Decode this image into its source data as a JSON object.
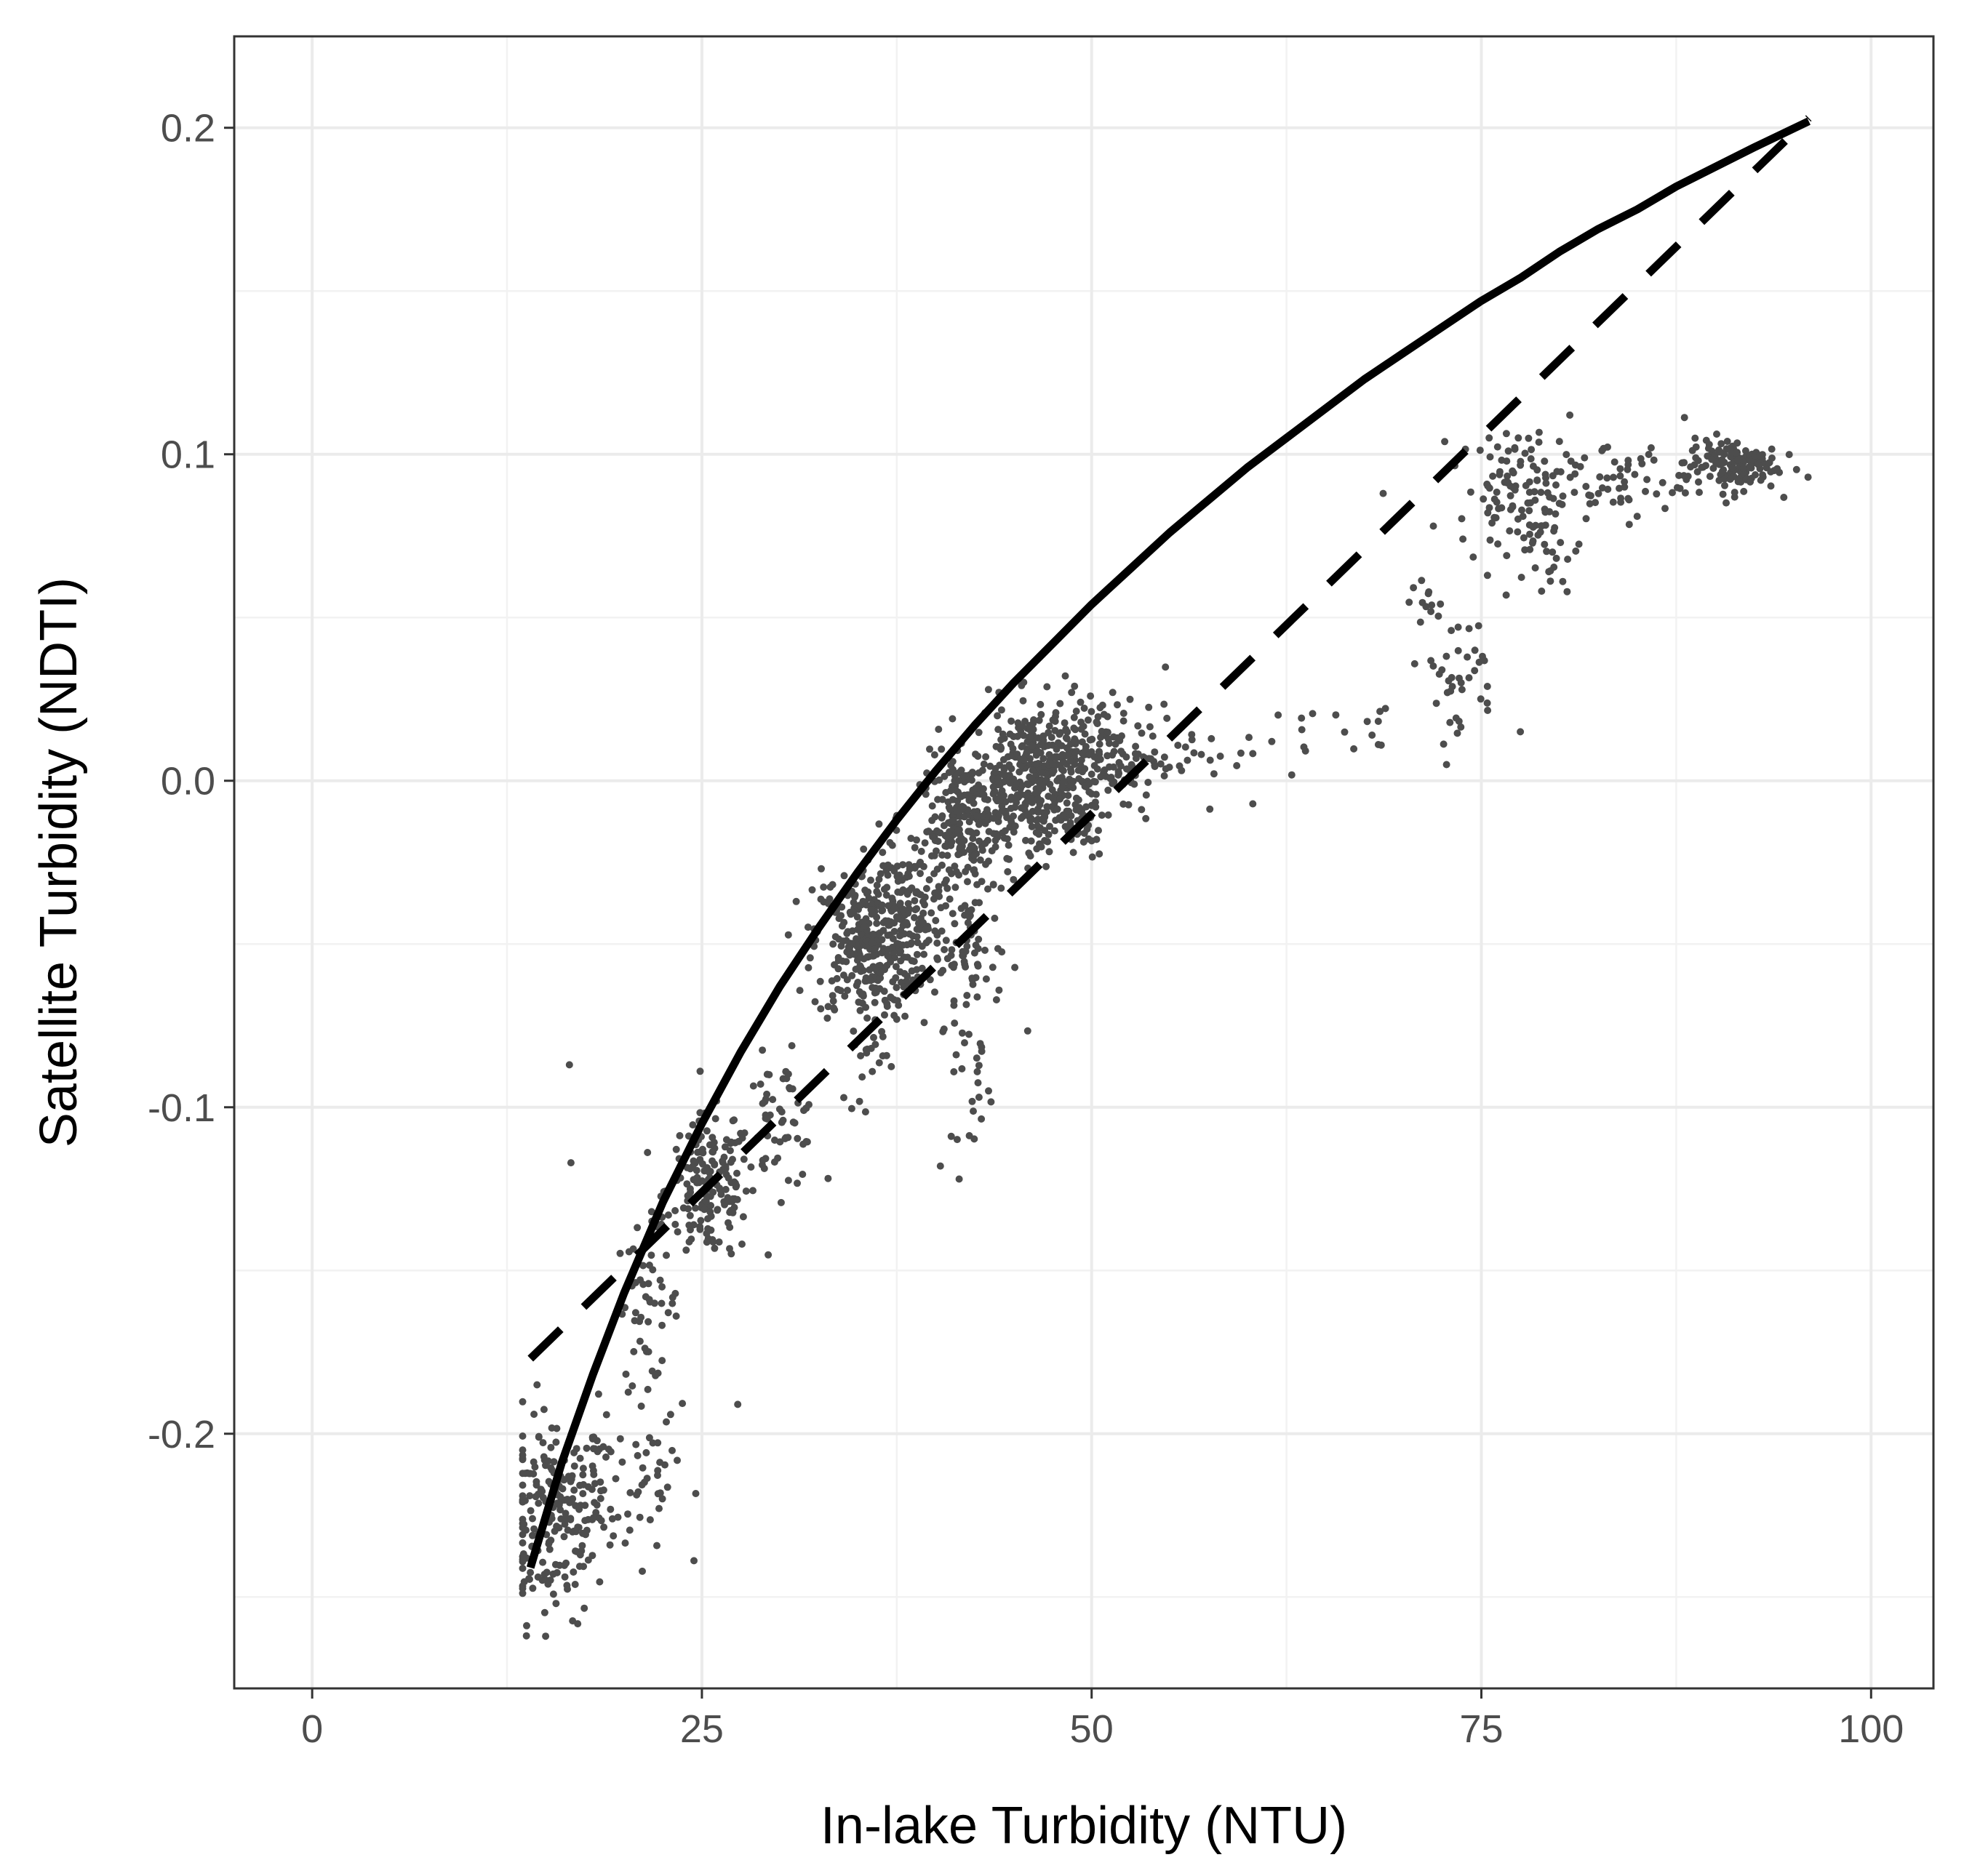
{
  "chart_data": {
    "type": "scatter",
    "title": "",
    "xlabel": "In-lake Turbidity (NTU)",
    "ylabel": "Satellite Turbidity (NDTI)",
    "xlim": [
      -5,
      104
    ],
    "ylim": [
      -0.278,
      0.228
    ],
    "x_ticks": [
      0,
      25,
      50,
      75,
      100
    ],
    "x_tick_labels": [
      "0",
      "25",
      "50",
      "75",
      "100"
    ],
    "y_ticks": [
      -0.2,
      -0.1,
      0.0,
      0.1,
      0.2
    ],
    "y_tick_labels": [
      "-0.2",
      "-0.1",
      "0.0",
      "0.1",
      "0.2"
    ],
    "grid": true,
    "legend": "none",
    "colors": {
      "points": "#4d4d4d",
      "lines": "#000000",
      "grid_major": "#ebebeb",
      "grid_minor": "#f2f2f2",
      "panel_border": "#333333"
    },
    "series": [
      {
        "type": "scatter",
        "style": "points",
        "clusters": [
          {
            "x": 15.5,
            "y": -0.225,
            "sx": 1.7,
            "sy": 0.016,
            "n": 190
          },
          {
            "x": 18.5,
            "y": -0.215,
            "sx": 2.2,
            "sy": 0.012,
            "n": 60
          },
          {
            "x": 22.0,
            "y": -0.215,
            "sx": 0.8,
            "sy": 0.008,
            "n": 20
          },
          {
            "x": 21.5,
            "y": -0.16,
            "sx": 1.0,
            "sy": 0.012,
            "n": 50
          },
          {
            "x": 25.5,
            "y": -0.125,
            "sx": 1.4,
            "sy": 0.011,
            "n": 170
          },
          {
            "x": 30.0,
            "y": -0.105,
            "sx": 1.3,
            "sy": 0.01,
            "n": 60
          },
          {
            "x": 35.5,
            "y": -0.05,
            "sx": 1.7,
            "sy": 0.012,
            "n": 300
          },
          {
            "x": 38.5,
            "y": -0.04,
            "sx": 1.5,
            "sy": 0.013,
            "n": 130
          },
          {
            "x": 42.0,
            "y": -0.015,
            "sx": 1.5,
            "sy": 0.011,
            "n": 230
          },
          {
            "x": 46.5,
            "y": 0.003,
            "sx": 2.1,
            "sy": 0.01,
            "n": 370
          },
          {
            "x": 50.5,
            "y": 0.008,
            "sx": 2.0,
            "sy": 0.009,
            "n": 100
          },
          {
            "x": 48.0,
            "y": -0.012,
            "sx": 1.8,
            "sy": 0.006,
            "n": 60
          },
          {
            "x": 42.5,
            "y": -0.055,
            "sx": 1.2,
            "sy": 0.01,
            "n": 50
          },
          {
            "x": 42.3,
            "y": -0.09,
            "sx": 0.7,
            "sy": 0.012,
            "n": 25
          },
          {
            "x": 36.0,
            "y": -0.085,
            "sx": 0.8,
            "sy": 0.01,
            "n": 20
          },
          {
            "x": 56.0,
            "y": 0.01,
            "sx": 2.5,
            "sy": 0.01,
            "n": 40
          },
          {
            "x": 73.5,
            "y": 0.032,
            "sx": 1.2,
            "sy": 0.01,
            "n": 40
          },
          {
            "x": 77.5,
            "y": 0.09,
            "sx": 2.0,
            "sy": 0.009,
            "n": 110
          },
          {
            "x": 79.0,
            "y": 0.07,
            "sx": 1.2,
            "sy": 0.008,
            "n": 30
          },
          {
            "x": 84.0,
            "y": 0.092,
            "sx": 2.0,
            "sy": 0.006,
            "n": 50
          },
          {
            "x": 91.0,
            "y": 0.097,
            "sx": 1.5,
            "sy": 0.004,
            "n": 140
          },
          {
            "x": 71.5,
            "y": 0.055,
            "sx": 0.5,
            "sy": 0.003,
            "n": 10
          },
          {
            "x": 66.0,
            "y": 0.015,
            "sx": 3.5,
            "sy": 0.006,
            "n": 15
          }
        ],
        "outliers": [
          [
            16.5,
            -0.087
          ],
          [
            16.6,
            -0.117
          ],
          [
            27.3,
            -0.191
          ],
          [
            77.5,
            0.015
          ],
          [
            68.7,
            0.088
          ],
          [
            41.5,
            -0.122
          ],
          [
            40.3,
            -0.118
          ],
          [
            75.5,
            0.105
          ]
        ]
      },
      {
        "type": "line",
        "style": "solid",
        "fit": "logarithmic",
        "x": [
          14,
          16,
          18,
          20,
          22.5,
          25,
          27.5,
          30,
          32.5,
          35,
          37.5,
          40,
          42.5,
          45,
          47.5,
          50,
          52.5,
          55,
          57.5,
          60,
          62.5,
          65,
          67.5,
          70,
          72.5,
          75,
          77.5,
          80,
          82.5,
          85,
          87.5,
          90,
          92.5,
          96
        ],
        "y": [
          -0.241,
          -0.209,
          -0.182,
          -0.157,
          -0.129,
          -0.105,
          -0.083,
          -0.063,
          -0.045,
          -0.028,
          -0.012,
          0.003,
          0.017,
          0.03,
          0.042,
          0.054,
          0.065,
          0.076,
          0.086,
          0.096,
          0.105,
          0.114,
          0.123,
          0.131,
          0.139,
          0.147,
          0.154,
          0.162,
          0.169,
          0.175,
          0.182,
          0.188,
          0.194,
          0.202
        ]
      },
      {
        "type": "line",
        "style": "dashed",
        "fit": "linear",
        "x": [
          14,
          96
        ],
        "y": [
          -0.177,
          0.203
        ]
      }
    ]
  }
}
